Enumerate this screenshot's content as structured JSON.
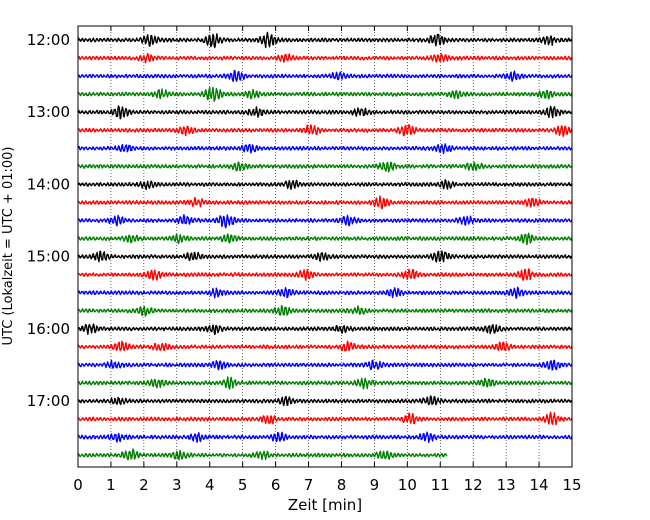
{
  "chart_data": {
    "type": "line",
    "title": "",
    "xlabel": "Zeit  [min]",
    "ylabel": "UTC (Lokalzeit = UTC + 01:00)",
    "xlim": [
      0,
      15
    ],
    "x_ticks": [
      "0",
      "1",
      "2",
      "3",
      "4",
      "5",
      "6",
      "7",
      "8",
      "9",
      "10",
      "11",
      "12",
      "13",
      "14",
      "15"
    ],
    "y_ticks": [
      "12:00",
      "13:00",
      "14:00",
      "15:00",
      "16:00",
      "17:00"
    ],
    "grid": "vertical dotted",
    "trace_minutes": 15,
    "colors": [
      "#000000",
      "#ff0000",
      "#0000ff",
      "#007f00"
    ],
    "traces": [
      {
        "start": "12:00",
        "color": "#000000",
        "end_min": 15,
        "bursts": [
          [
            2.2,
            1.4
          ],
          [
            4.1,
            1.6
          ],
          [
            5.8,
            1.8
          ],
          [
            10.9,
            1.5
          ],
          [
            14.3,
            1.2
          ]
        ]
      },
      {
        "start": "12:15",
        "color": "#ff0000",
        "end_min": 15,
        "bursts": [
          [
            2.1,
            0.9
          ],
          [
            6.3,
            1.0
          ],
          [
            11.0,
            1.0
          ]
        ]
      },
      {
        "start": "12:30",
        "color": "#0000ff",
        "end_min": 15,
        "bursts": [
          [
            4.8,
            1.3
          ],
          [
            7.9,
            1.0
          ],
          [
            13.2,
            1.0
          ]
        ]
      },
      {
        "start": "12:45",
        "color": "#007f00",
        "end_min": 15,
        "bursts": [
          [
            2.5,
            1.2
          ],
          [
            4.1,
            2.0
          ],
          [
            5.3,
            1.0
          ],
          [
            11.5,
            1.0
          ],
          [
            14.2,
            1.1
          ]
        ]
      },
      {
        "start": "13:00",
        "color": "#000000",
        "end_min": 15,
        "bursts": [
          [
            1.3,
            1.5
          ],
          [
            5.4,
            1.2
          ],
          [
            8.6,
            1.1
          ],
          [
            14.4,
            1.3
          ]
        ]
      },
      {
        "start": "13:15",
        "color": "#ff0000",
        "end_min": 15,
        "bursts": [
          [
            3.3,
            1.1
          ],
          [
            7.1,
            1.3
          ],
          [
            10.0,
            1.4
          ],
          [
            14.7,
            1.2
          ]
        ]
      },
      {
        "start": "13:30",
        "color": "#0000ff",
        "end_min": 15,
        "bursts": [
          [
            1.4,
            0.9
          ],
          [
            5.2,
            1.0
          ],
          [
            11.1,
            1.0
          ]
        ]
      },
      {
        "start": "13:45",
        "color": "#007f00",
        "end_min": 15,
        "bursts": [
          [
            4.9,
            1.2
          ],
          [
            9.4,
            1.3
          ],
          [
            12.0,
            1.1
          ]
        ]
      },
      {
        "start": "14:00",
        "color": "#000000",
        "end_min": 15,
        "bursts": [
          [
            2.1,
            1.0
          ],
          [
            6.5,
            1.1
          ],
          [
            11.2,
            1.0
          ]
        ]
      },
      {
        "start": "14:15",
        "color": "#ff0000",
        "end_min": 15,
        "bursts": [
          [
            3.6,
            1.1
          ],
          [
            9.2,
            1.4
          ],
          [
            13.8,
            1.1
          ]
        ]
      },
      {
        "start": "14:30",
        "color": "#0000ff",
        "end_min": 15,
        "bursts": [
          [
            1.2,
            1.2
          ],
          [
            3.3,
            1.3
          ],
          [
            4.5,
            1.7
          ],
          [
            8.2,
            1.1
          ],
          [
            11.8,
            1.0
          ]
        ]
      },
      {
        "start": "14:45",
        "color": "#007f00",
        "end_min": 15,
        "bursts": [
          [
            1.6,
            1.0
          ],
          [
            3.1,
            1.1
          ],
          [
            4.6,
            1.1
          ],
          [
            13.6,
            1.3
          ]
        ]
      },
      {
        "start": "15:00",
        "color": "#000000",
        "end_min": 15,
        "bursts": [
          [
            0.7,
            1.3
          ],
          [
            3.5,
            1.1
          ],
          [
            7.4,
            1.0
          ],
          [
            11.0,
            1.5
          ]
        ]
      },
      {
        "start": "15:15",
        "color": "#ff0000",
        "end_min": 15,
        "bursts": [
          [
            2.3,
            1.2
          ],
          [
            6.9,
            1.2
          ],
          [
            10.1,
            1.3
          ],
          [
            13.6,
            1.3
          ]
        ]
      },
      {
        "start": "15:30",
        "color": "#0000ff",
        "end_min": 15,
        "bursts": [
          [
            4.2,
            1.1
          ],
          [
            6.3,
            1.1
          ],
          [
            9.6,
            1.0
          ],
          [
            13.3,
            1.3
          ]
        ]
      },
      {
        "start": "15:45",
        "color": "#007f00",
        "end_min": 15,
        "bursts": [
          [
            2.0,
            1.1
          ],
          [
            6.2,
            1.2
          ],
          [
            8.5,
            1.0
          ]
        ]
      },
      {
        "start": "16:00",
        "color": "#000000",
        "end_min": 15,
        "bursts": [
          [
            0.4,
            1.4
          ],
          [
            4.1,
            1.3
          ],
          [
            8.0,
            1.0
          ],
          [
            12.6,
            1.2
          ]
        ]
      },
      {
        "start": "16:15",
        "color": "#ff0000",
        "end_min": 15,
        "bursts": [
          [
            1.3,
            1.2
          ],
          [
            2.5,
            1.1
          ],
          [
            8.2,
            1.2
          ],
          [
            12.9,
            1.1
          ]
        ]
      },
      {
        "start": "16:30",
        "color": "#0000ff",
        "end_min": 15,
        "bursts": [
          [
            1.1,
            1.1
          ],
          [
            4.3,
            1.2
          ],
          [
            9.0,
            1.1
          ],
          [
            14.4,
            1.3
          ]
        ]
      },
      {
        "start": "16:45",
        "color": "#007f00",
        "end_min": 15,
        "bursts": [
          [
            2.4,
            1.1
          ],
          [
            4.6,
            1.4
          ],
          [
            8.7,
            1.2
          ],
          [
            12.4,
            1.0
          ]
        ]
      },
      {
        "start": "17:00",
        "color": "#000000",
        "end_min": 15,
        "bursts": [
          [
            1.2,
            1.0
          ],
          [
            6.3,
            1.0
          ],
          [
            10.7,
            1.1
          ]
        ]
      },
      {
        "start": "17:15",
        "color": "#ff0000",
        "end_min": 15,
        "bursts": [
          [
            5.8,
            1.2
          ],
          [
            10.1,
            1.3
          ],
          [
            14.4,
            1.5
          ]
        ]
      },
      {
        "start": "17:30",
        "color": "#0000ff",
        "end_min": 15,
        "bursts": [
          [
            1.2,
            1.1
          ],
          [
            3.6,
            1.1
          ],
          [
            6.1,
            1.1
          ],
          [
            10.6,
            1.3
          ]
        ]
      },
      {
        "start": "17:45",
        "color": "#007f00",
        "end_min": 11.2,
        "bursts": [
          [
            1.6,
            1.5
          ],
          [
            3.1,
            1.0
          ],
          [
            5.6,
            1.0
          ],
          [
            9.3,
            1.1
          ]
        ]
      }
    ]
  }
}
